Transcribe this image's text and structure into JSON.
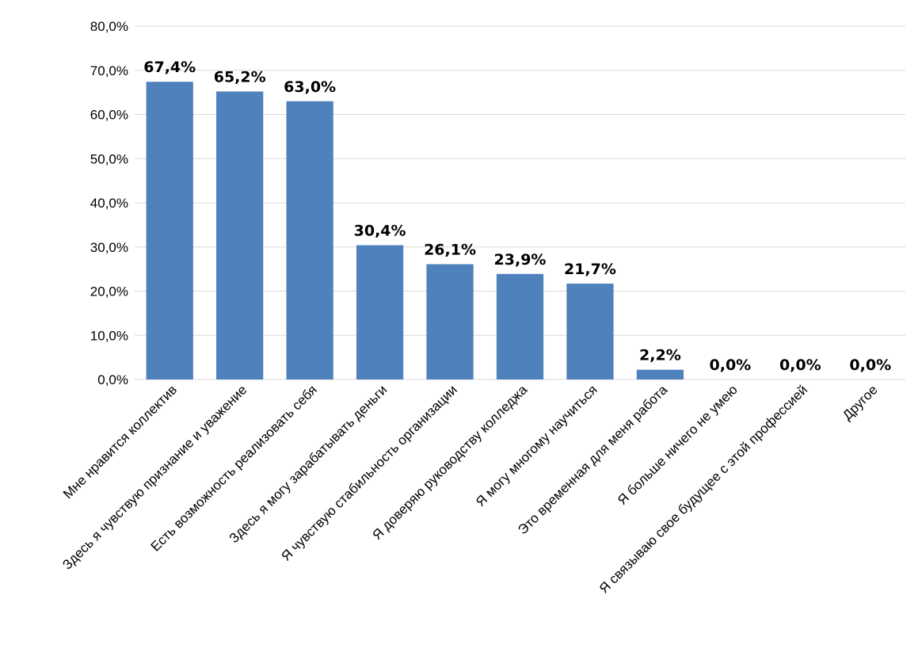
{
  "chart_data": {
    "type": "bar",
    "categories": [
      "Мне нравится коллектив",
      "Здесь я чувствую признание и уважение",
      "Есть возможность реализовать себя",
      "Здесь я могу зарабатывать деньги",
      "Я чувствую стабильность организации",
      "Я доверяю руководству колледжа",
      "Я могу многому научиться",
      "Это временная для меня работа",
      "Я больше ничего не умею",
      "Я связываю свое будущее с этой профессией",
      "Другое"
    ],
    "values": [
      67.4,
      65.2,
      63.0,
      30.4,
      26.1,
      23.9,
      21.7,
      2.2,
      0.0,
      0.0,
      0.0
    ],
    "data_labels": [
      "67,4%",
      "65,2%",
      "63,0%",
      "30,4%",
      "26,1%",
      "23,9%",
      "21,7%",
      "2,2%",
      "0,0%",
      "0,0%",
      "0,0%"
    ],
    "y_ticks": [
      0,
      10,
      20,
      30,
      40,
      50,
      60,
      70,
      80
    ],
    "y_tick_labels": [
      "0,0%",
      "10,0%",
      "20,0%",
      "30,0%",
      "40,0%",
      "50,0%",
      "60,0%",
      "70,0%",
      "80,0%"
    ],
    "ylim": [
      0,
      80
    ],
    "grid": true,
    "legend": "none",
    "title": "",
    "xlabel": "",
    "ylabel": "",
    "bar_color": "#4f81bd"
  }
}
